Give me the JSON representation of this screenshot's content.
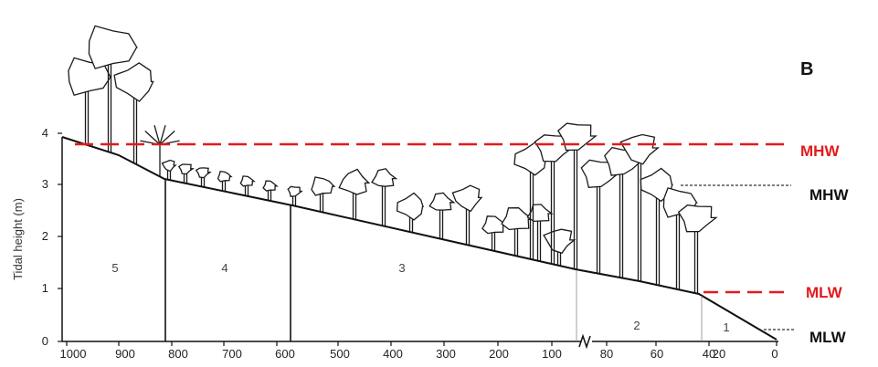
{
  "panel_label": "B",
  "y_axis": {
    "label": "Tidal height (m)",
    "ticks": [
      "0",
      "1",
      "2",
      "3",
      "4"
    ]
  },
  "x_axis": {
    "ticks": [
      "1000",
      "900",
      "800",
      "700",
      "600",
      "500",
      "400",
      "300",
      "200",
      "100",
      "80",
      "60",
      "40",
      "20",
      "0"
    ]
  },
  "zones": [
    "5",
    "4",
    "3",
    "2",
    "1"
  ],
  "levels": [
    {
      "label": "MHW",
      "color": "#e31a1c",
      "style": "dashed"
    },
    {
      "label": "MHW",
      "color": "#111111",
      "style": "dotted"
    },
    {
      "label": "MLW",
      "color": "#e31a1c",
      "style": "dashed"
    },
    {
      "label": "MLW",
      "color": "#111111",
      "style": "dotted"
    }
  ],
  "axis_break_icon": "axis-break-icon"
}
